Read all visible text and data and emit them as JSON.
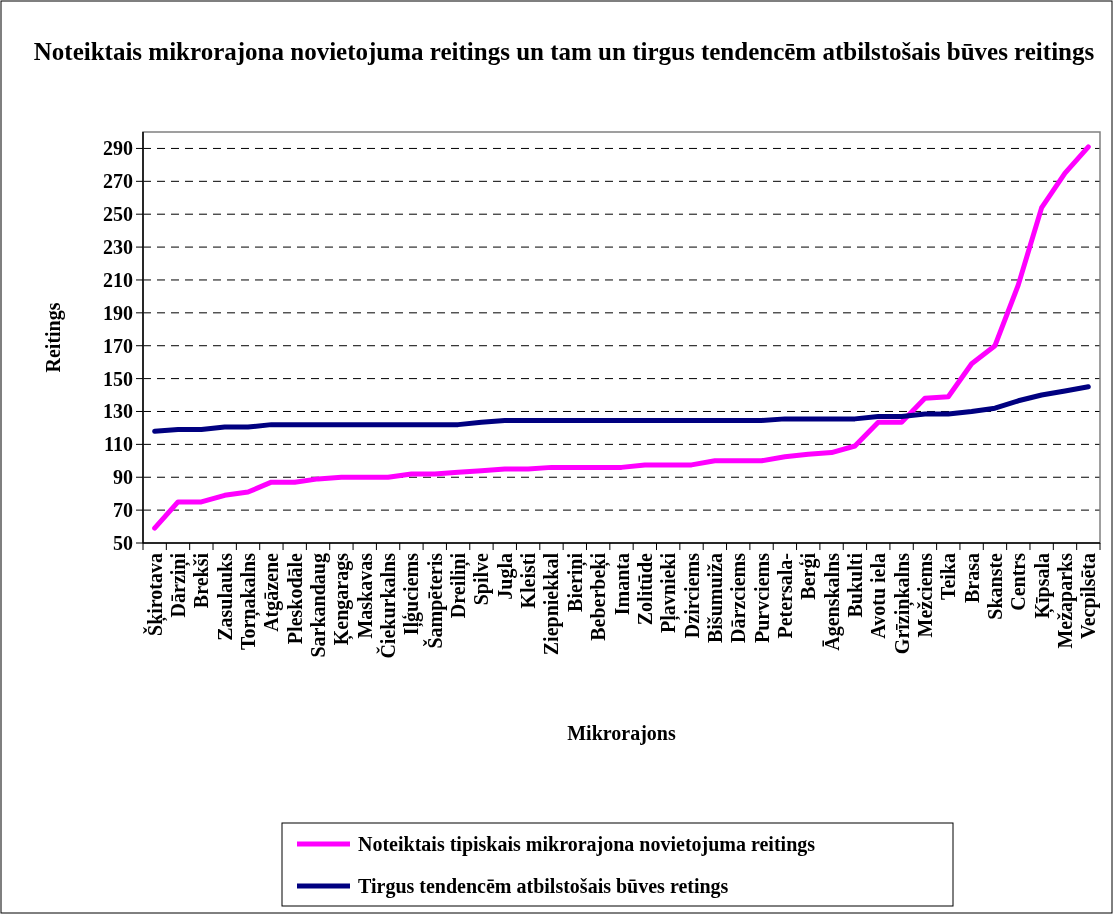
{
  "chart_data": {
    "type": "line",
    "title": "Noteiktais mikrorajona novietojuma reitings un tam un tirgus tendencēm atbilstošais būves reitings",
    "xlabel": "Mikrorajons",
    "ylabel": "Reitings",
    "categories": [
      "Šķirotava",
      "Dārziņi",
      "Brekši",
      "Zasulauks",
      "Torņakalns",
      "Atgāzene",
      "Pleskodāle",
      "Sarkandaug",
      "Ķengarags",
      "Maskavas",
      "Čiekurkalns",
      "Iļģuciems",
      "Šampēteris",
      "Dreiliņi",
      "Spilve",
      "Jugla",
      "Kleisti",
      "Ziepniekkal",
      "Bieriņi",
      "Beberbeķi",
      "Imanta",
      "Zolitūde",
      "Pļavnieki",
      "Dzirciems",
      "Bišumuiža",
      "Dārzciems",
      "Purvciems",
      "Petersala-",
      "Berģi",
      "Āgenskalns",
      "Bukulti",
      "Avotu iela",
      "Grīziņkalns",
      "Mežciems",
      "Teika",
      "Brasa",
      "Skanste",
      "Centrs",
      "Ķīpsala",
      "Mežaparks",
      "Vecpilsēta"
    ],
    "series": [
      {
        "name": "Noteiktais tipiskais mikrorajona novietojuma reitings",
        "color": "#ff00ff",
        "values": [
          59,
          75,
          75,
          79,
          81,
          87,
          87,
          89,
          90,
          90,
          90,
          92,
          92,
          93,
          94,
          95,
          95,
          96,
          96,
          96,
          96,
          97.5,
          97.5,
          97.5,
          100,
          100,
          100,
          102.5,
          104,
          105,
          109,
          123.5,
          123.5,
          138,
          139,
          159,
          170,
          207,
          254,
          275,
          291
        ]
      },
      {
        "name": "Tirgus tendencēm atbilstošais būves retings",
        "color": "#000080",
        "values": [
          118,
          119,
          119,
          120.5,
          120.5,
          122,
          122,
          122,
          122,
          122,
          122,
          122,
          122,
          122,
          123.5,
          124.5,
          124.5,
          124.5,
          124.5,
          124.5,
          124.5,
          124.5,
          124.5,
          124.5,
          124.5,
          124.5,
          124.5,
          125.5,
          125.5,
          125.5,
          125.5,
          127,
          127,
          128.5,
          128.5,
          130,
          132,
          136.5,
          140,
          142.5,
          145
        ]
      }
    ],
    "ylim": [
      50,
      300
    ],
    "yticks": [
      50,
      70,
      90,
      110,
      130,
      150,
      170,
      190,
      210,
      230,
      250,
      270,
      290
    ],
    "grid": "y",
    "legend": "bottom",
    "marker": "none",
    "line_style": "solid"
  }
}
